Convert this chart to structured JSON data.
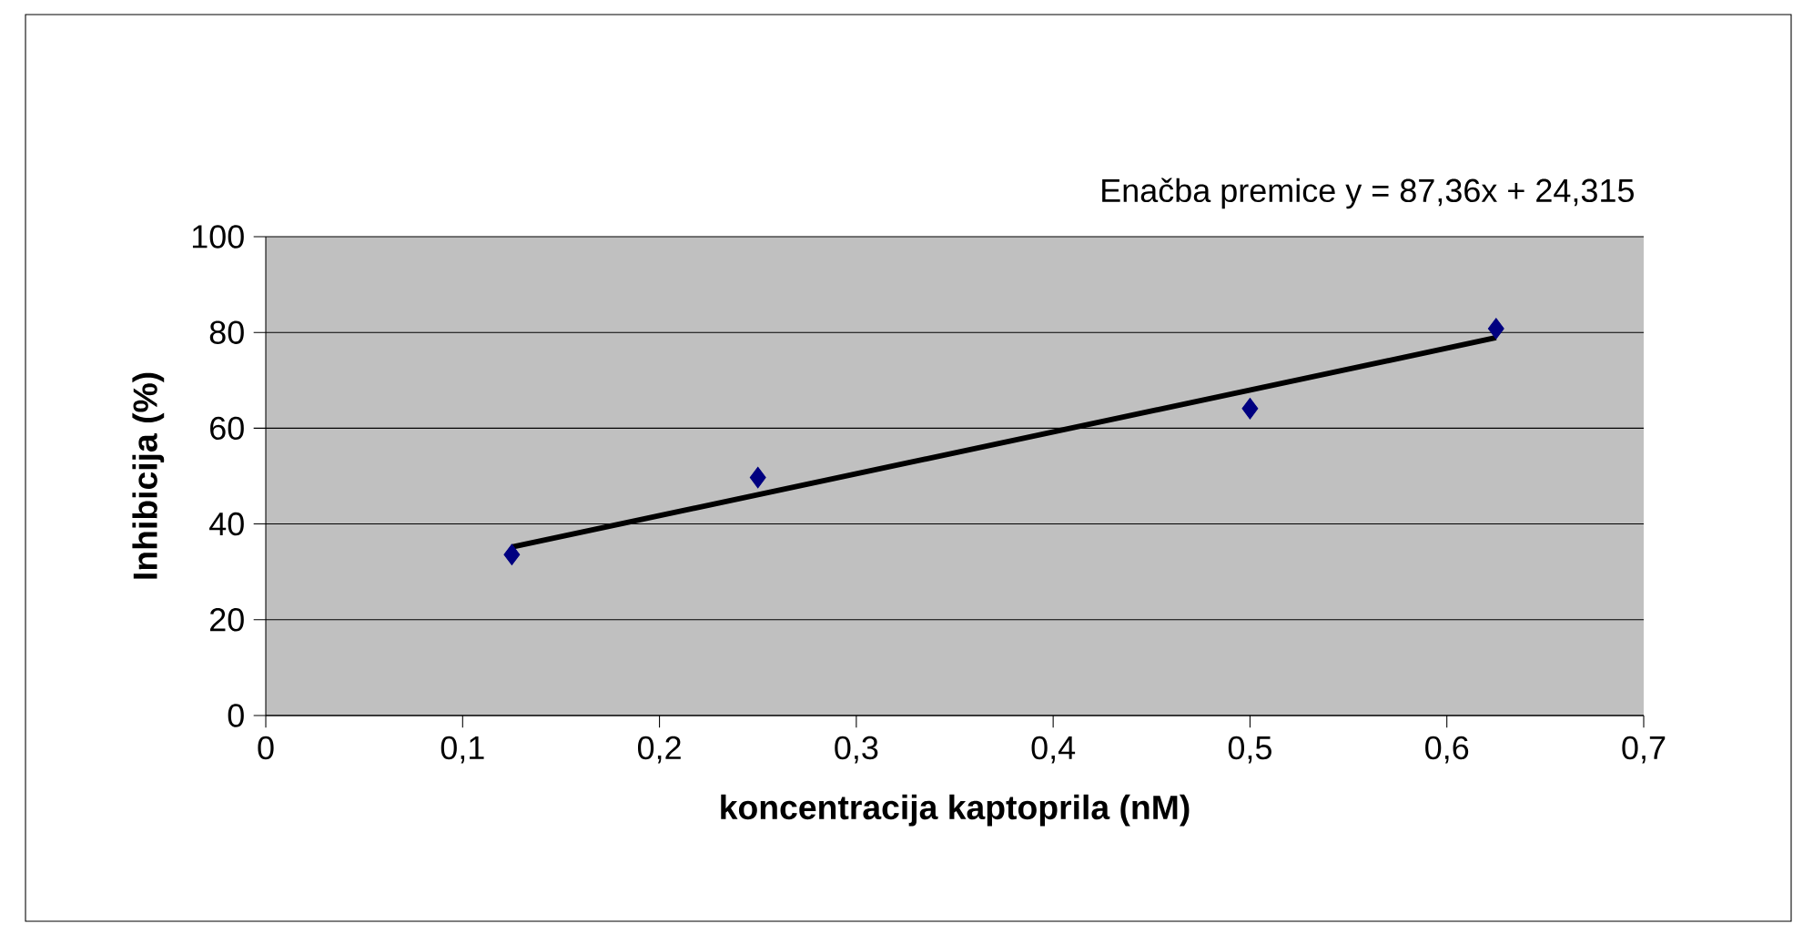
{
  "chart_data": {
    "type": "scatter",
    "xlabel": "koncentracija kaptoprila (nM)",
    "ylabel": "Inhibicija (%)",
    "annotations": [
      "Enačba premice  y = 87,36x + 24,315"
    ],
    "series": [
      {
        "color": "#000080",
        "marker": "diamond",
        "x": [
          0.125,
          0.25,
          0.5,
          0.625
        ],
        "values": [
          33.6,
          49.7,
          64.1,
          80.8
        ]
      },
      {
        "type": "line",
        "color": "#000000",
        "line_style": "solid",
        "x": [
          0.125,
          0.625
        ],
        "values": [
          35.2,
          78.9
        ]
      }
    ],
    "xlim": [
      0,
      0.7
    ],
    "ylim": [
      0,
      100
    ],
    "xticks": [
      {
        "value": 0,
        "label": "0"
      },
      {
        "value": 0.1,
        "label": "0,1"
      },
      {
        "value": 0.2,
        "label": "0,2"
      },
      {
        "value": 0.3,
        "label": "0,3"
      },
      {
        "value": 0.4,
        "label": "0,4"
      },
      {
        "value": 0.5,
        "label": "0,5"
      },
      {
        "value": 0.6,
        "label": "0,6"
      },
      {
        "value": 0.7,
        "label": "0,7"
      }
    ],
    "yticks": [
      0,
      20,
      40,
      60,
      80,
      100
    ],
    "grid": "y"
  }
}
